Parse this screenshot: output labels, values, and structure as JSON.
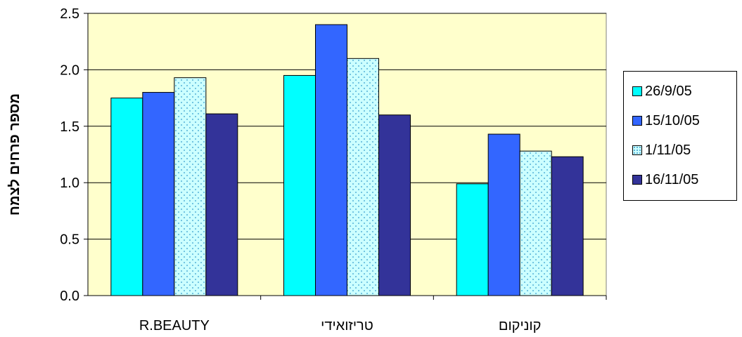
{
  "chart_data": {
    "type": "bar",
    "categories": [
      "R.BEAUTY",
      "טריזואידי",
      "קוניקום"
    ],
    "series": [
      {
        "name": "26/9/05",
        "values": [
          1.75,
          1.95,
          0.99
        ],
        "color": "#00ffff",
        "pattern": "solid"
      },
      {
        "name": "15/10/05",
        "values": [
          1.8,
          2.4,
          1.43
        ],
        "color": "#3366ff",
        "pattern": "solid"
      },
      {
        "name": "1/11/05",
        "values": [
          1.93,
          2.1,
          1.28
        ],
        "color": "#ccffff",
        "pattern": "dotted"
      },
      {
        "name": "16/11/05",
        "values": [
          1.61,
          1.6,
          1.23
        ],
        "color": "#333399",
        "pattern": "solid"
      }
    ],
    "xlabel": "",
    "ylabel": "מספר פרחים לצמח",
    "ylim": [
      0,
      2.5
    ],
    "yticks": [
      "0.0",
      "0.5",
      "1.0",
      "1.5",
      "2.0",
      "2.5"
    ],
    "grid": true,
    "plot_background": "#ffffcc",
    "legend_position": "right"
  }
}
